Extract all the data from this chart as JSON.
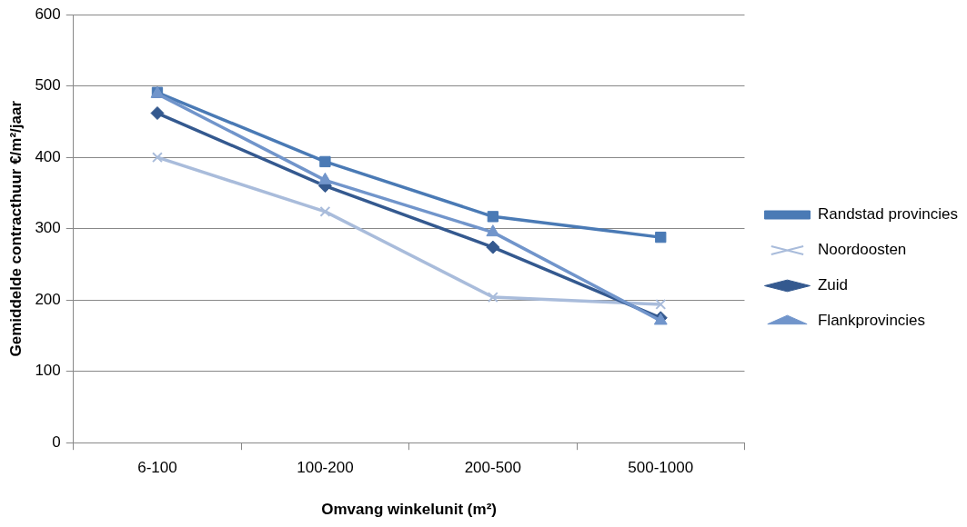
{
  "chart_data": {
    "type": "line",
    "xlabel": "Omvang winkelunit (m²)",
    "ylabel": "Gemiddelde contracthuur €/m²/jaar",
    "categories": [
      "6-100",
      "100-200",
      "200-500",
      "500-1000"
    ],
    "ylim": [
      0,
      600
    ],
    "yticks": [
      0,
      100,
      200,
      300,
      400,
      500,
      600
    ],
    "grid": "y",
    "legend": "right",
    "series": [
      {
        "name": "Randstad provincies",
        "color": "#4a7ab5",
        "marker": "square",
        "values": [
          491,
          394,
          317,
          288
        ]
      },
      {
        "name": "Noordoosten",
        "color": "#a9bcdb",
        "marker": "cross",
        "values": [
          400,
          324,
          204,
          194
        ]
      },
      {
        "name": "Zuid",
        "color": "#34598f",
        "marker": "diamond",
        "values": [
          462,
          360,
          274,
          175
        ]
      },
      {
        "name": "Flankprovincies",
        "color": "#7195cb",
        "marker": "triangle",
        "values": [
          489,
          368,
          295,
          171
        ]
      }
    ]
  }
}
